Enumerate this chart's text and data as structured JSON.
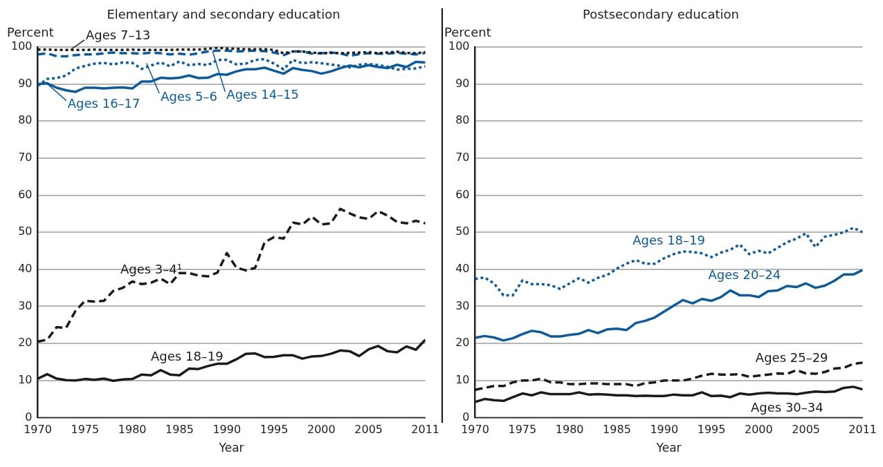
{
  "chart_data": [
    {
      "type": "line",
      "title": "Elementary and secondary education",
      "xlabel": "Year",
      "ylabel": "Percent",
      "x": [
        1970,
        1971,
        1972,
        1973,
        1974,
        1975,
        1976,
        1977,
        1978,
        1979,
        1980,
        1981,
        1982,
        1983,
        1984,
        1985,
        1986,
        1987,
        1988,
        1989,
        1990,
        1991,
        1992,
        1993,
        1994,
        1995,
        1996,
        1997,
        1998,
        1999,
        2000,
        2001,
        2002,
        2003,
        2004,
        2005,
        2006,
        2007,
        2008,
        2009,
        2010,
        2011
      ],
      "xlim": [
        1970,
        2011
      ],
      "xticks": [
        1970,
        1975,
        1980,
        1985,
        1990,
        1995,
        2000,
        2005,
        2011
      ],
      "ylim": [
        0,
        100
      ],
      "yticks": [
        0,
        10,
        20,
        30,
        40,
        50,
        60,
        70,
        80,
        90,
        100
      ],
      "grid": "y",
      "series": [
        {
          "name": "Ages 7–13",
          "color": "#1a1a1a",
          "line_style": "dotted",
          "values": [
            99.3,
            99.3,
            99.2,
            99.2,
            99.2,
            99.2,
            99.3,
            99.2,
            99.2,
            99.2,
            99.3,
            99.2,
            99.2,
            99.2,
            99.2,
            99.3,
            99.3,
            99.3,
            99.5,
            99.8,
            99.6,
            99.5,
            99.4,
            99.4,
            99.4,
            99.2,
            98.3,
            98.8,
            98.8,
            98.5,
            98.3,
            98.4,
            98.3,
            98.4,
            98.5,
            98.6,
            98.3,
            98.5,
            98.7,
            98.4,
            98.3,
            98.6
          ]
        },
        {
          "name": "Ages 14–15",
          "color": "#0a5aa0",
          "line_style": "dashed",
          "values": [
            98,
            98.3,
            97.5,
            97.5,
            97.8,
            98,
            98,
            98.3,
            98.5,
            98.3,
            98.3,
            98.2,
            98.5,
            98.3,
            98,
            98.2,
            97.9,
            98.3,
            98.8,
            99,
            99,
            98.8,
            98.9,
            99,
            98.9,
            98.5,
            97.8,
            98.8,
            98.8,
            98.2,
            98.3,
            98.5,
            98.3,
            97.6,
            98.1,
            98.3,
            98.2,
            98.2,
            98.4,
            98.2,
            98,
            98.4
          ]
        },
        {
          "name": "Ages 5–6",
          "color": "#0a5aa0",
          "line_style": "dotted",
          "values": [
            89.5,
            91.4,
            91.6,
            92.3,
            94.2,
            94.9,
            95.5,
            95.7,
            95.3,
            95.8,
            95.7,
            94.1,
            95,
            95.8,
            94.8,
            96.1,
            95.1,
            95.4,
            95.1,
            96.5,
            96.5,
            95.3,
            95.5,
            96.5,
            96.7,
            95.5,
            94,
            96.5,
            95.6,
            95.9,
            95.6,
            95.3,
            94.9,
            94.5,
            95.2,
            95.4,
            95.1,
            94.7,
            93.9,
            94.1,
            94.2,
            94.8
          ]
        },
        {
          "name": "Ages 16–17",
          "color": "#0a5aa0",
          "line_style": "solid",
          "values": [
            90,
            90.2,
            89,
            88.3,
            87.9,
            89,
            89,
            88.8,
            89,
            89.1,
            88.8,
            90.7,
            90.7,
            91.7,
            91.5,
            91.7,
            92.3,
            91.6,
            91.7,
            92.7,
            92.5,
            93.4,
            94,
            94,
            94.4,
            93.6,
            92.8,
            94.3,
            93.8,
            93.5,
            92.8,
            93.4,
            94.3,
            95,
            94.5,
            95.1,
            94.6,
            94.3,
            95.2,
            94.6,
            96,
            95.8
          ]
        },
        {
          "name": "Ages 3–4¹",
          "color": "#1a1a1a",
          "line_style": "dashed",
          "values": [
            20.5,
            21,
            24.4,
            24.2,
            28.8,
            31.5,
            31.3,
            31.5,
            34.2,
            35,
            36.7,
            36,
            36.4,
            37.5,
            36,
            39,
            39,
            38.3,
            38.1,
            39.1,
            44.4,
            40.5,
            39.7,
            40.4,
            47.3,
            48.7,
            48.3,
            52.6,
            52.1,
            54.2,
            52.1,
            52.4,
            56.3,
            55.1,
            54,
            53.6,
            55.7,
            54.5,
            52.8,
            52.4,
            53.1,
            52.4
          ]
        },
        {
          "name": "Ages 18–19",
          "color": "#1a1a1a",
          "line_style": "solid",
          "values": [
            10.5,
            11.7,
            10.5,
            10.1,
            10,
            10.4,
            10.2,
            10.5,
            9.9,
            10.3,
            10.4,
            11.6,
            11.4,
            12.8,
            11.6,
            11.4,
            13.2,
            13.1,
            13.9,
            14.5,
            14.5,
            15.7,
            17.2,
            17.3,
            16.3,
            16.4,
            16.8,
            16.8,
            15.9,
            16.5,
            16.6,
            17.2,
            18.1,
            17.9,
            16.6,
            18.4,
            19.3,
            17.9,
            17.6,
            19.2,
            18.3,
            21
          ]
        }
      ]
    },
    {
      "type": "line",
      "title": "Postsecondary education",
      "xlabel": "Year",
      "ylabel": "Percent",
      "x": [
        1970,
        1971,
        1972,
        1973,
        1974,
        1975,
        1976,
        1977,
        1978,
        1979,
        1980,
        1981,
        1982,
        1983,
        1984,
        1985,
        1986,
        1987,
        1988,
        1989,
        1990,
        1991,
        1992,
        1993,
        1994,
        1995,
        1996,
        1997,
        1998,
        1999,
        2000,
        2001,
        2002,
        2003,
        2004,
        2005,
        2006,
        2007,
        2008,
        2009,
        2010,
        2011
      ],
      "xlim": [
        1970,
        2011
      ],
      "xticks": [
        1970,
        1975,
        1980,
        1985,
        1990,
        1995,
        2000,
        2005,
        2011
      ],
      "ylim": [
        0,
        100
      ],
      "yticks": [
        0,
        10,
        20,
        30,
        40,
        50,
        60,
        70,
        80,
        90,
        100
      ],
      "grid": "y",
      "series": [
        {
          "name": "Ages 18–19",
          "color": "#0a5aa0",
          "line_style": "dotted",
          "values": [
            37.4,
            37.8,
            36.2,
            33,
            33,
            37,
            36,
            36,
            35.7,
            34.7,
            36.2,
            37.6,
            36.4,
            37.7,
            38.5,
            40.2,
            41.5,
            42.5,
            41.5,
            41.5,
            43,
            44.1,
            44.8,
            44.7,
            44.3,
            43.3,
            44.5,
            45.3,
            46.7,
            44.1,
            45,
            44.3,
            45.8,
            47.3,
            48.3,
            49.7,
            46,
            48.8,
            49.3,
            50,
            51.2,
            50
          ]
        },
        {
          "name": "Ages 20–24",
          "color": "#0a5aa0",
          "line_style": "solid",
          "values": [
            21.5,
            22,
            21.6,
            20.8,
            21.4,
            22.5,
            23.4,
            23,
            21.9,
            21.9,
            22.3,
            22.6,
            23.6,
            22.8,
            23.8,
            24,
            23.6,
            25.5,
            26.1,
            27,
            28.6,
            30.2,
            31.7,
            30.8,
            32,
            31.5,
            32.5,
            34.3,
            33,
            33,
            32.5,
            34.1,
            34.3,
            35.5,
            35.2,
            36.2,
            35,
            35.6,
            36.9,
            38.6,
            38.6,
            39.8
          ]
        },
        {
          "name": "Ages 25–29",
          "color": "#1a1a1a",
          "line_style": "dashed",
          "values": [
            7.5,
            8,
            8.5,
            8.5,
            9.5,
            10,
            10,
            10.5,
            9.5,
            9.5,
            9,
            9,
            9.2,
            9.2,
            9,
            9,
            9,
            8.5,
            9.3,
            9.5,
            10,
            10,
            10,
            10.5,
            11.3,
            11.8,
            11.6,
            11.6,
            11.7,
            11,
            11.3,
            11.6,
            11.9,
            11.8,
            12.8,
            11.9,
            11.8,
            12.3,
            13.2,
            13.4,
            14.5,
            14.8
          ]
        },
        {
          "name": "Ages 30–34",
          "color": "#1a1a1a",
          "line_style": "solid",
          "values": [
            4.2,
            5,
            4.7,
            4.5,
            5.5,
            6.5,
            6,
            6.8,
            6.3,
            6.3,
            6.3,
            6.8,
            6.2,
            6.3,
            6.2,
            6,
            6,
            5.8,
            5.9,
            5.8,
            5.8,
            6.2,
            6,
            6,
            6.8,
            5.8,
            5.9,
            5.5,
            6.5,
            6.2,
            6.5,
            6.7,
            6.5,
            6.5,
            6.3,
            6.7,
            7,
            6.9,
            7,
            8,
            8.3,
            7.6
          ]
        }
      ]
    }
  ]
}
